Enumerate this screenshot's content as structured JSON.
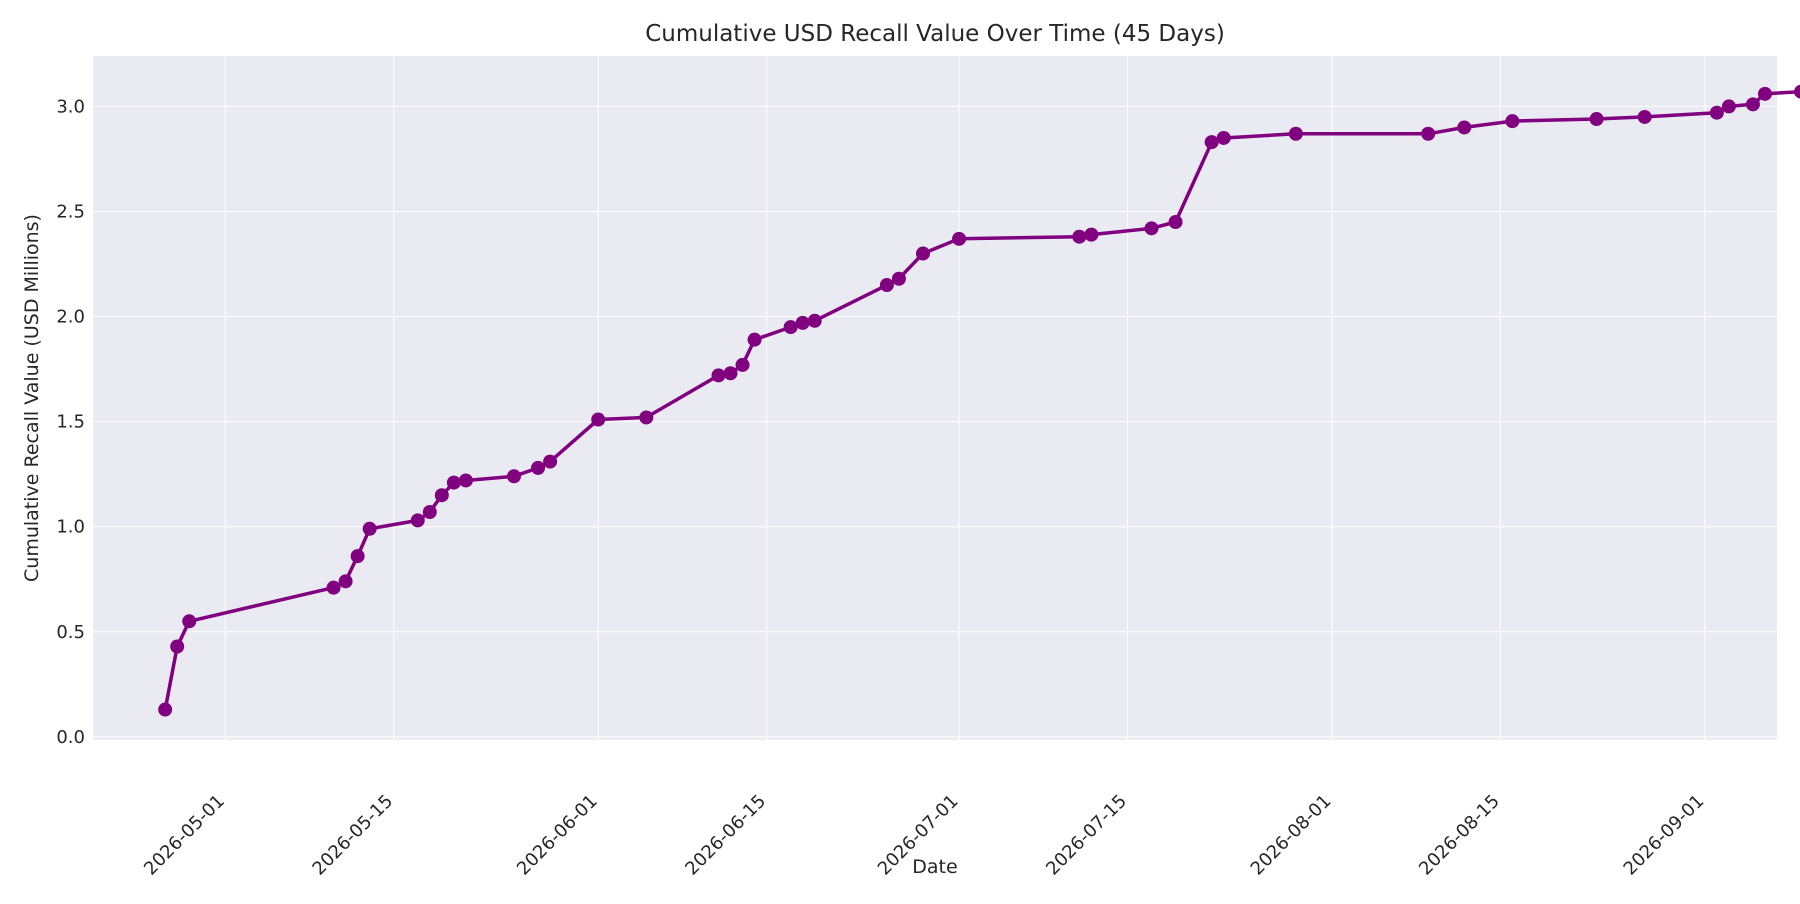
{
  "chart_data": {
    "type": "line",
    "title": "Cumulative USD Recall Value Over Time (45 Days)",
    "xlabel": "Date",
    "ylabel": "Cumulative Recall Value (USD Millions)",
    "x_ticks": [
      "2026-05-01",
      "2026-05-15",
      "2026-06-01",
      "2026-06-15",
      "2026-07-01",
      "2026-07-15",
      "2026-08-01",
      "2026-08-15",
      "2026-09-01"
    ],
    "y_ticks": [
      0.0,
      0.5,
      1.0,
      1.5,
      2.0,
      2.5,
      3.0
    ],
    "y_tick_labels": [
      "0.0",
      "0.5",
      "1.0",
      "1.5",
      "2.0",
      "2.5",
      "3.0"
    ],
    "xlim": [
      "2026-04-20",
      "2026-09-07"
    ],
    "ylim": [
      -0.015,
      3.24
    ],
    "grid": true,
    "legend": "none",
    "colors": {
      "line": "#800080",
      "plot_background": "#eaeaf2",
      "grid": "#ffffff"
    },
    "series": [
      {
        "x": [
          "2026-04-26",
          "2026-04-27",
          "2026-04-28",
          "2026-05-10",
          "2026-05-11",
          "2026-05-12",
          "2026-05-13",
          "2026-05-17",
          "2026-05-18",
          "2026-05-19",
          "2026-05-20",
          "2026-05-21",
          "2026-05-25",
          "2026-05-27",
          "2026-05-28",
          "2026-06-01",
          "2026-06-05",
          "2026-06-11",
          "2026-06-12",
          "2026-06-13",
          "2026-06-14",
          "2026-06-17",
          "2026-06-18",
          "2026-06-19",
          "2026-06-25",
          "2026-06-26",
          "2026-06-28",
          "2026-07-01",
          "2026-07-11",
          "2026-07-12",
          "2026-07-17",
          "2026-07-19",
          "2026-07-22",
          "2026-07-23",
          "2026-07-29",
          "2026-08-09",
          "2026-08-12",
          "2026-08-16",
          "2026-08-23",
          "2026-08-27",
          "2026-09-02",
          "2026-09-03",
          "2026-09-05",
          "2026-09-06",
          "2026-09-09"
        ],
        "y": [
          0.13,
          0.43,
          0.55,
          0.71,
          0.74,
          0.86,
          0.99,
          1.03,
          1.07,
          1.15,
          1.21,
          1.22,
          1.24,
          1.28,
          1.31,
          1.51,
          1.52,
          1.72,
          1.73,
          1.77,
          1.89,
          1.95,
          1.97,
          1.98,
          2.15,
          2.18,
          2.3,
          2.37,
          2.38,
          2.39,
          2.42,
          2.45,
          2.83,
          2.85,
          2.87,
          2.87,
          2.9,
          2.93,
          2.94,
          2.95,
          2.97,
          3.0,
          3.01,
          3.06,
          3.07
        ]
      }
    ]
  }
}
